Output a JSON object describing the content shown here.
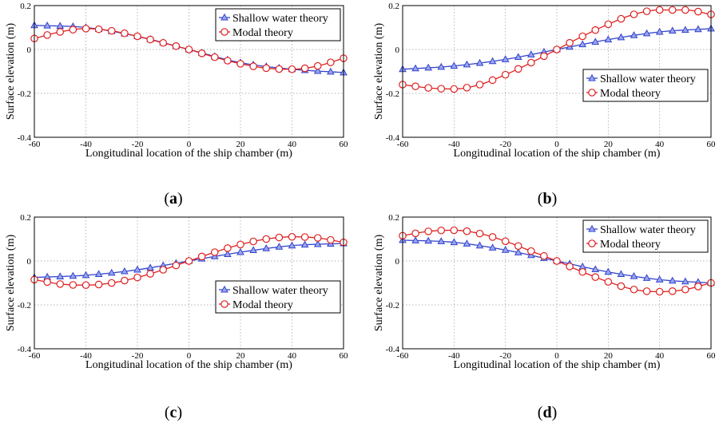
{
  "figure": {
    "chart_data": [
      {
        "type": "line",
        "panel_label": "a",
        "xlabel": "Longitudinal location of the ship chamber (m)",
        "ylabel": "Surface elevation (m)",
        "xlim": [
          -60,
          60
        ],
        "ylim": [
          -0.4,
          0.2
        ],
        "xticks": [
          -60,
          -40,
          -20,
          0,
          20,
          40,
          60
        ],
        "yticks": [
          -0.4,
          -0.2,
          0,
          0.2
        ],
        "ytick_labels": [
          "-0.4",
          "-0.2",
          "0",
          "0.2"
        ],
        "grid": true,
        "legend_position": "top-right",
        "series": [
          {
            "name": "Shallow water theory",
            "color": "#3344cc",
            "marker": "triangle",
            "x": [
              -60,
              -40,
              -20,
              0,
              20,
              40,
              60
            ],
            "y": [
              0.11,
              0.1,
              0.06,
              0,
              -0.06,
              -0.09,
              -0.105
            ]
          },
          {
            "name": "Modal theory",
            "color": "#e02020",
            "marker": "circle",
            "x": [
              -60,
              -50,
              -40,
              -30,
              -20,
              -10,
              0,
              10,
              20,
              30,
              40,
              50,
              60
            ],
            "y": [
              0.05,
              0.08,
              0.095,
              0.085,
              0.06,
              0.03,
              0,
              -0.035,
              -0.065,
              -0.085,
              -0.09,
              -0.075,
              -0.04
            ]
          }
        ]
      },
      {
        "type": "line",
        "panel_label": "b",
        "xlabel": "Longitudinal location of the ship chamber (m)",
        "ylabel": "Surface elevation (m)",
        "xlim": [
          -60,
          60
        ],
        "ylim": [
          -0.4,
          0.2
        ],
        "xticks": [
          -60,
          -40,
          -20,
          0,
          20,
          40,
          60
        ],
        "yticks": [
          -0.4,
          -0.2,
          0,
          0.2
        ],
        "ytick_labels": [
          "-0.4",
          "-0.2",
          "0",
          "0.2"
        ],
        "grid": true,
        "legend_position": "center-right",
        "series": [
          {
            "name": "Shallow water theory",
            "color": "#3344cc",
            "marker": "triangle",
            "x": [
              -60,
              -40,
              -20,
              0,
              20,
              40,
              60
            ],
            "y": [
              -0.09,
              -0.075,
              -0.045,
              0,
              0.045,
              0.08,
              0.095
            ]
          },
          {
            "name": "Modal theory",
            "color": "#e02020",
            "marker": "circle",
            "x": [
              -60,
              -50,
              -40,
              -30,
              -20,
              -10,
              0,
              10,
              20,
              30,
              40,
              50,
              60
            ],
            "y": [
              -0.16,
              -0.175,
              -0.18,
              -0.16,
              -0.115,
              -0.06,
              0,
              0.06,
              0.115,
              0.16,
              0.18,
              0.18,
              0.16
            ]
          }
        ]
      },
      {
        "type": "line",
        "panel_label": "c",
        "xlabel": "Longitudinal location of the ship chamber (m)",
        "ylabel": "Surface elevation (m)",
        "xlim": [
          -60,
          60
        ],
        "ylim": [
          -0.4,
          0.2
        ],
        "xticks": [
          -60,
          -40,
          -20,
          0,
          20,
          40,
          60
        ],
        "yticks": [
          -0.4,
          -0.2,
          0,
          0.2
        ],
        "ytick_labels": [
          "-0.4",
          "-0.2",
          "0",
          "0.2"
        ],
        "grid": true,
        "legend_position": "center-right",
        "series": [
          {
            "name": "Shallow water theory",
            "color": "#3344cc",
            "marker": "triangle",
            "x": [
              -60,
              -40,
              -20,
              0,
              20,
              40,
              60
            ],
            "y": [
              -0.075,
              -0.065,
              -0.04,
              0,
              0.04,
              0.07,
              0.08
            ]
          },
          {
            "name": "Modal theory",
            "color": "#e02020",
            "marker": "circle",
            "x": [
              -60,
              -50,
              -40,
              -30,
              -20,
              -10,
              0,
              10,
              20,
              30,
              40,
              50,
              60
            ],
            "y": [
              -0.085,
              -0.105,
              -0.11,
              -0.1,
              -0.075,
              -0.04,
              0,
              0.04,
              0.075,
              0.1,
              0.11,
              0.105,
              0.085
            ]
          }
        ]
      },
      {
        "type": "line",
        "panel_label": "d",
        "xlabel": "Longitudinal location of the ship chamber (m)",
        "ylabel": "Surface elevation (m)",
        "xlim": [
          -60,
          60
        ],
        "ylim": [
          -0.4,
          0.2
        ],
        "xticks": [
          -60,
          -40,
          -20,
          0,
          20,
          40,
          60
        ],
        "yticks": [
          -0.4,
          -0.2,
          0,
          0.2
        ],
        "ytick_labels": [
          "-0.4",
          "-0.2",
          "0",
          "0.2"
        ],
        "grid": true,
        "legend_position": "top-right",
        "series": [
          {
            "name": "Shallow water theory",
            "color": "#3344cc",
            "marker": "triangle",
            "x": [
              -60,
              -40,
              -20,
              0,
              20,
              40,
              60
            ],
            "y": [
              0.095,
              0.085,
              0.05,
              0,
              -0.05,
              -0.085,
              -0.1
            ]
          },
          {
            "name": "Modal theory",
            "color": "#e02020",
            "marker": "circle",
            "x": [
              -60,
              -50,
              -40,
              -30,
              -20,
              -10,
              0,
              10,
              20,
              30,
              40,
              50,
              60
            ],
            "y": [
              0.115,
              0.135,
              0.14,
              0.125,
              0.09,
              0.045,
              0,
              -0.05,
              -0.095,
              -0.13,
              -0.14,
              -0.13,
              -0.1
            ]
          }
        ]
      }
    ]
  }
}
